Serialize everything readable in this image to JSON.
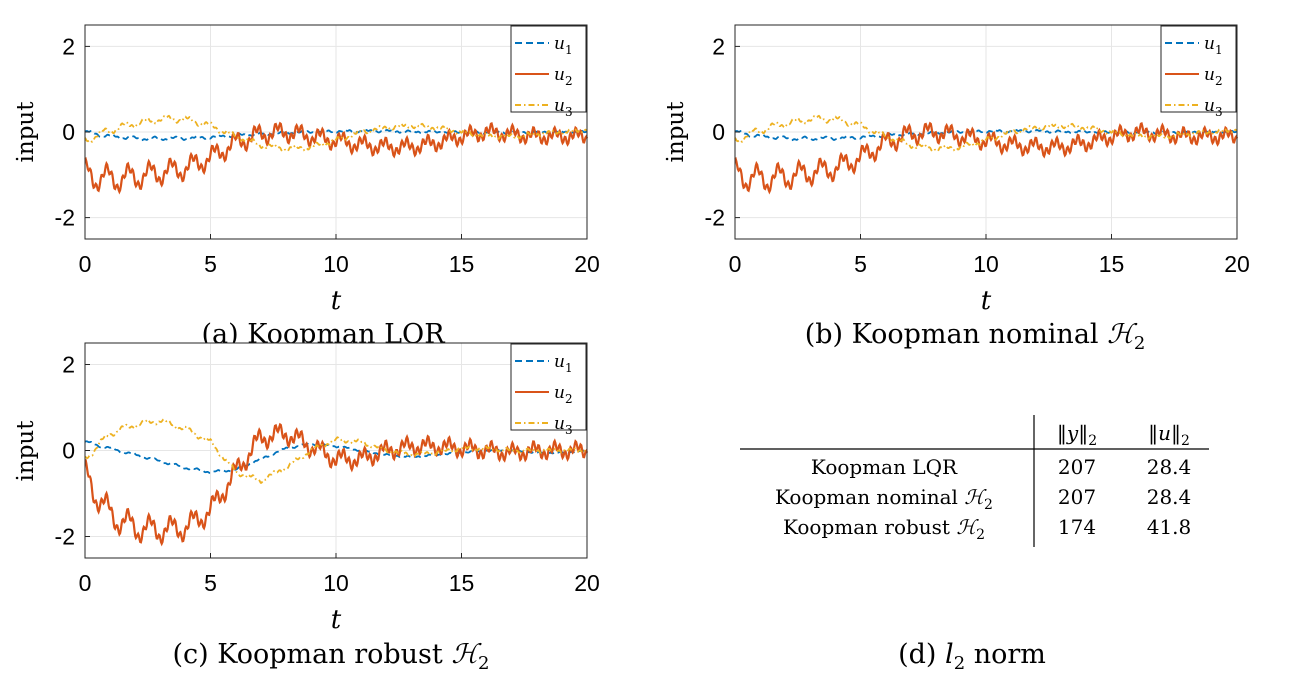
{
  "chart_data": [
    {
      "id": "a",
      "type": "line",
      "caption": "(a) Koopman LQR",
      "xlabel": "t",
      "ylabel": "input",
      "xlim": [
        0,
        20
      ],
      "ylim": [
        -2.5,
        2.5
      ],
      "xticks": [
        "0",
        "5",
        "10",
        "15",
        "20"
      ],
      "yticks": [
        "2",
        "0",
        "-2"
      ],
      "grid": true,
      "legend_position": "top-right",
      "series": [
        {
          "name": "u_1",
          "color": "#0072BD",
          "style": "dashed",
          "x": [
            0,
            1,
            2,
            3,
            4,
            5,
            6,
            7,
            8,
            9,
            10,
            11,
            12,
            13,
            14,
            15,
            16,
            17,
            18,
            19,
            20
          ],
          "values": [
            0.0,
            -0.1,
            -0.15,
            -0.15,
            -0.15,
            -0.12,
            -0.08,
            -0.05,
            -0.02,
            0.0,
            0.02,
            0.02,
            0.02,
            0.01,
            0.0,
            -0.01,
            -0.01,
            -0.01,
            0.0,
            0.0,
            0.0
          ],
          "osc_amp": 0.04
        },
        {
          "name": "u_2",
          "color": "#D95319",
          "style": "solid",
          "x": [
            0,
            1,
            2,
            3,
            4,
            5,
            6,
            7,
            8,
            9,
            10,
            11,
            12,
            13,
            14,
            15,
            16,
            17,
            18,
            19,
            20
          ],
          "values": [
            -1.0,
            -1.1,
            -1.05,
            -0.95,
            -0.85,
            -0.6,
            -0.25,
            -0.05,
            0.0,
            -0.1,
            -0.2,
            -0.3,
            -0.35,
            -0.35,
            -0.25,
            -0.1,
            0.0,
            -0.05,
            -0.1,
            -0.1,
            -0.1
          ],
          "osc_amp": 0.28
        },
        {
          "name": "u_3",
          "color": "#EDB120",
          "style": "dashdot",
          "x": [
            0,
            1,
            2,
            3,
            4,
            5,
            6,
            7,
            8,
            9,
            10,
            11,
            12,
            13,
            14,
            15,
            16,
            17,
            18,
            19,
            20
          ],
          "values": [
            -0.2,
            0.05,
            0.2,
            0.3,
            0.3,
            0.15,
            -0.1,
            -0.3,
            -0.4,
            -0.35,
            -0.2,
            0.0,
            0.1,
            0.15,
            0.1,
            0.0,
            -0.1,
            -0.1,
            -0.05,
            0.0,
            0.05
          ],
          "osc_amp": 0.08
        }
      ]
    },
    {
      "id": "b",
      "type": "line",
      "caption": "(b) Koopman nominal ",
      "caption_math": "ℋ",
      "caption_sub": "2",
      "xlabel": "t",
      "ylabel": "input",
      "xlim": [
        0,
        20
      ],
      "ylim": [
        -2.5,
        2.5
      ],
      "xticks": [
        "0",
        "5",
        "10",
        "15",
        "20"
      ],
      "yticks": [
        "2",
        "0",
        "-2"
      ],
      "grid": true,
      "legend_position": "top-right",
      "series": [
        {
          "name": "u_1",
          "color": "#0072BD",
          "style": "dashed",
          "x": [
            0,
            1,
            2,
            3,
            4,
            5,
            6,
            7,
            8,
            9,
            10,
            11,
            12,
            13,
            14,
            15,
            16,
            17,
            18,
            19,
            20
          ],
          "values": [
            0.0,
            -0.1,
            -0.15,
            -0.15,
            -0.15,
            -0.12,
            -0.08,
            -0.05,
            -0.02,
            0.0,
            0.02,
            0.02,
            0.02,
            0.01,
            0.0,
            -0.01,
            -0.01,
            -0.01,
            0.0,
            0.0,
            0.0
          ],
          "osc_amp": 0.04
        },
        {
          "name": "u_2",
          "color": "#D95319",
          "style": "solid",
          "x": [
            0,
            1,
            2,
            3,
            4,
            5,
            6,
            7,
            8,
            9,
            10,
            11,
            12,
            13,
            14,
            15,
            16,
            17,
            18,
            19,
            20
          ],
          "values": [
            -1.0,
            -1.1,
            -1.05,
            -0.95,
            -0.85,
            -0.6,
            -0.25,
            -0.05,
            0.0,
            -0.1,
            -0.2,
            -0.3,
            -0.35,
            -0.35,
            -0.25,
            -0.1,
            0.0,
            -0.05,
            -0.1,
            -0.1,
            -0.1
          ],
          "osc_amp": 0.28
        },
        {
          "name": "u_3",
          "color": "#EDB120",
          "style": "dashdot",
          "x": [
            0,
            1,
            2,
            3,
            4,
            5,
            6,
            7,
            8,
            9,
            10,
            11,
            12,
            13,
            14,
            15,
            16,
            17,
            18,
            19,
            20
          ],
          "values": [
            -0.2,
            0.05,
            0.2,
            0.3,
            0.3,
            0.15,
            -0.1,
            -0.3,
            -0.4,
            -0.35,
            -0.2,
            0.0,
            0.1,
            0.15,
            0.1,
            0.0,
            -0.1,
            -0.1,
            -0.05,
            0.0,
            0.05
          ],
          "osc_amp": 0.08
        }
      ]
    },
    {
      "id": "c",
      "type": "line",
      "caption": "(c) Koopman robust ",
      "caption_math": "ℋ",
      "caption_sub": "2",
      "xlabel": "t",
      "ylabel": "input",
      "xlim": [
        0,
        20
      ],
      "ylim": [
        -2.5,
        2.5
      ],
      "xticks": [
        "0",
        "5",
        "10",
        "15",
        "20"
      ],
      "yticks": [
        "2",
        "0",
        "-2"
      ],
      "grid": true,
      "legend_position": "top-right",
      "series": [
        {
          "name": "u_1",
          "color": "#0072BD",
          "style": "dashed",
          "x": [
            0,
            1,
            2,
            3,
            4,
            5,
            6,
            7,
            8,
            9,
            10,
            11,
            12,
            13,
            14,
            15,
            16,
            17,
            18,
            19,
            20
          ],
          "values": [
            0.2,
            0.05,
            -0.1,
            -0.25,
            -0.4,
            -0.5,
            -0.45,
            -0.2,
            0.05,
            0.15,
            0.1,
            0.0,
            -0.1,
            -0.15,
            -0.1,
            -0.05,
            0.0,
            0.0,
            -0.05,
            -0.05,
            0.0
          ],
          "osc_amp": 0.03
        },
        {
          "name": "u_2",
          "color": "#D95319",
          "style": "solid",
          "x": [
            0,
            1,
            2,
            3,
            4,
            5,
            6,
            7,
            8,
            9,
            10,
            11,
            12,
            13,
            14,
            15,
            16,
            17,
            18,
            19,
            20
          ],
          "values": [
            -0.6,
            -1.5,
            -1.8,
            -1.85,
            -1.8,
            -1.4,
            -0.5,
            0.3,
            0.4,
            0.1,
            -0.2,
            -0.2,
            0.0,
            0.1,
            0.1,
            0.05,
            0.0,
            -0.05,
            0.0,
            0.0,
            0.0
          ],
          "osc_amp": 0.3
        },
        {
          "name": "u_3",
          "color": "#EDB120",
          "style": "dashdot",
          "x": [
            0,
            1,
            2,
            3,
            4,
            5,
            6,
            7,
            8,
            9,
            10,
            11,
            12,
            13,
            14,
            15,
            16,
            17,
            18,
            19,
            20
          ],
          "values": [
            -0.2,
            0.4,
            0.6,
            0.7,
            0.5,
            0.2,
            -0.5,
            -0.7,
            -0.4,
            0.0,
            0.25,
            0.2,
            0.0,
            -0.1,
            -0.05,
            0.05,
            0.05,
            0.0,
            0.0,
            0.0,
            0.0
          ],
          "osc_amp": 0.07
        }
      ]
    },
    {
      "id": "d",
      "type": "table",
      "caption": "(d) ",
      "caption_math": "l",
      "caption_sub": "2",
      "caption_tail": " norm",
      "columns": [
        {
          "pre": "‖",
          "var": "y",
          "post": "‖",
          "sub": "2"
        },
        {
          "pre": "‖",
          "var": "u",
          "post": "‖",
          "sub": "2"
        }
      ],
      "rows": [
        {
          "label": "Koopman LQR",
          "label_math": "",
          "values": [
            "207",
            "28.4"
          ]
        },
        {
          "label": "Koopman nominal ",
          "label_math": "ℋ",
          "label_sub": "2",
          "values": [
            "207",
            "28.4"
          ]
        },
        {
          "label": "Koopman robust ",
          "label_math": "ℋ",
          "label_sub": "2",
          "values": [
            "174",
            "41.8"
          ]
        }
      ]
    }
  ]
}
